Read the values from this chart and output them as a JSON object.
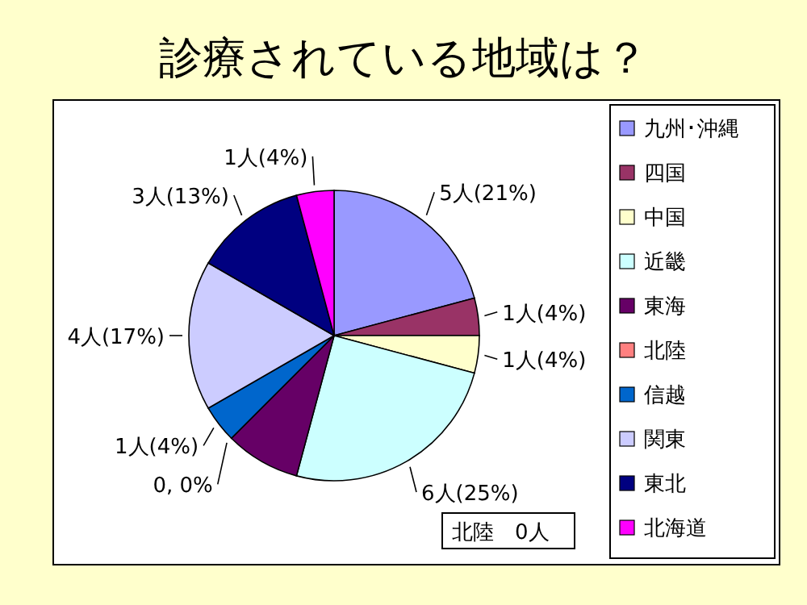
{
  "chart_data": {
    "type": "pie",
    "title": "診療されている地域は？",
    "categories": [
      "九州･沖縄",
      "四国",
      "中国",
      "近畿",
      "東海",
      "北陸",
      "信越",
      "関東",
      "東北",
      "北海道"
    ],
    "values": [
      5,
      1,
      1,
      6,
      2,
      0,
      1,
      4,
      3,
      1
    ],
    "colors": [
      "#9999ff",
      "#993366",
      "#ffffcc",
      "#ccffff",
      "#660066",
      "#ff8080",
      "#0066cc",
      "#ccccff",
      "#000080",
      "#ff00ff"
    ],
    "value_labels": [
      "5人(21%)",
      "1人(4%)",
      "1人(4%)",
      "6人(25%)",
      null,
      "0, 0%",
      "1人(4%)",
      "4人(17%)",
      "3人(13%)",
      "1人(4%)"
    ],
    "legend": "right",
    "annotations": [
      "北陸　0人"
    ]
  }
}
